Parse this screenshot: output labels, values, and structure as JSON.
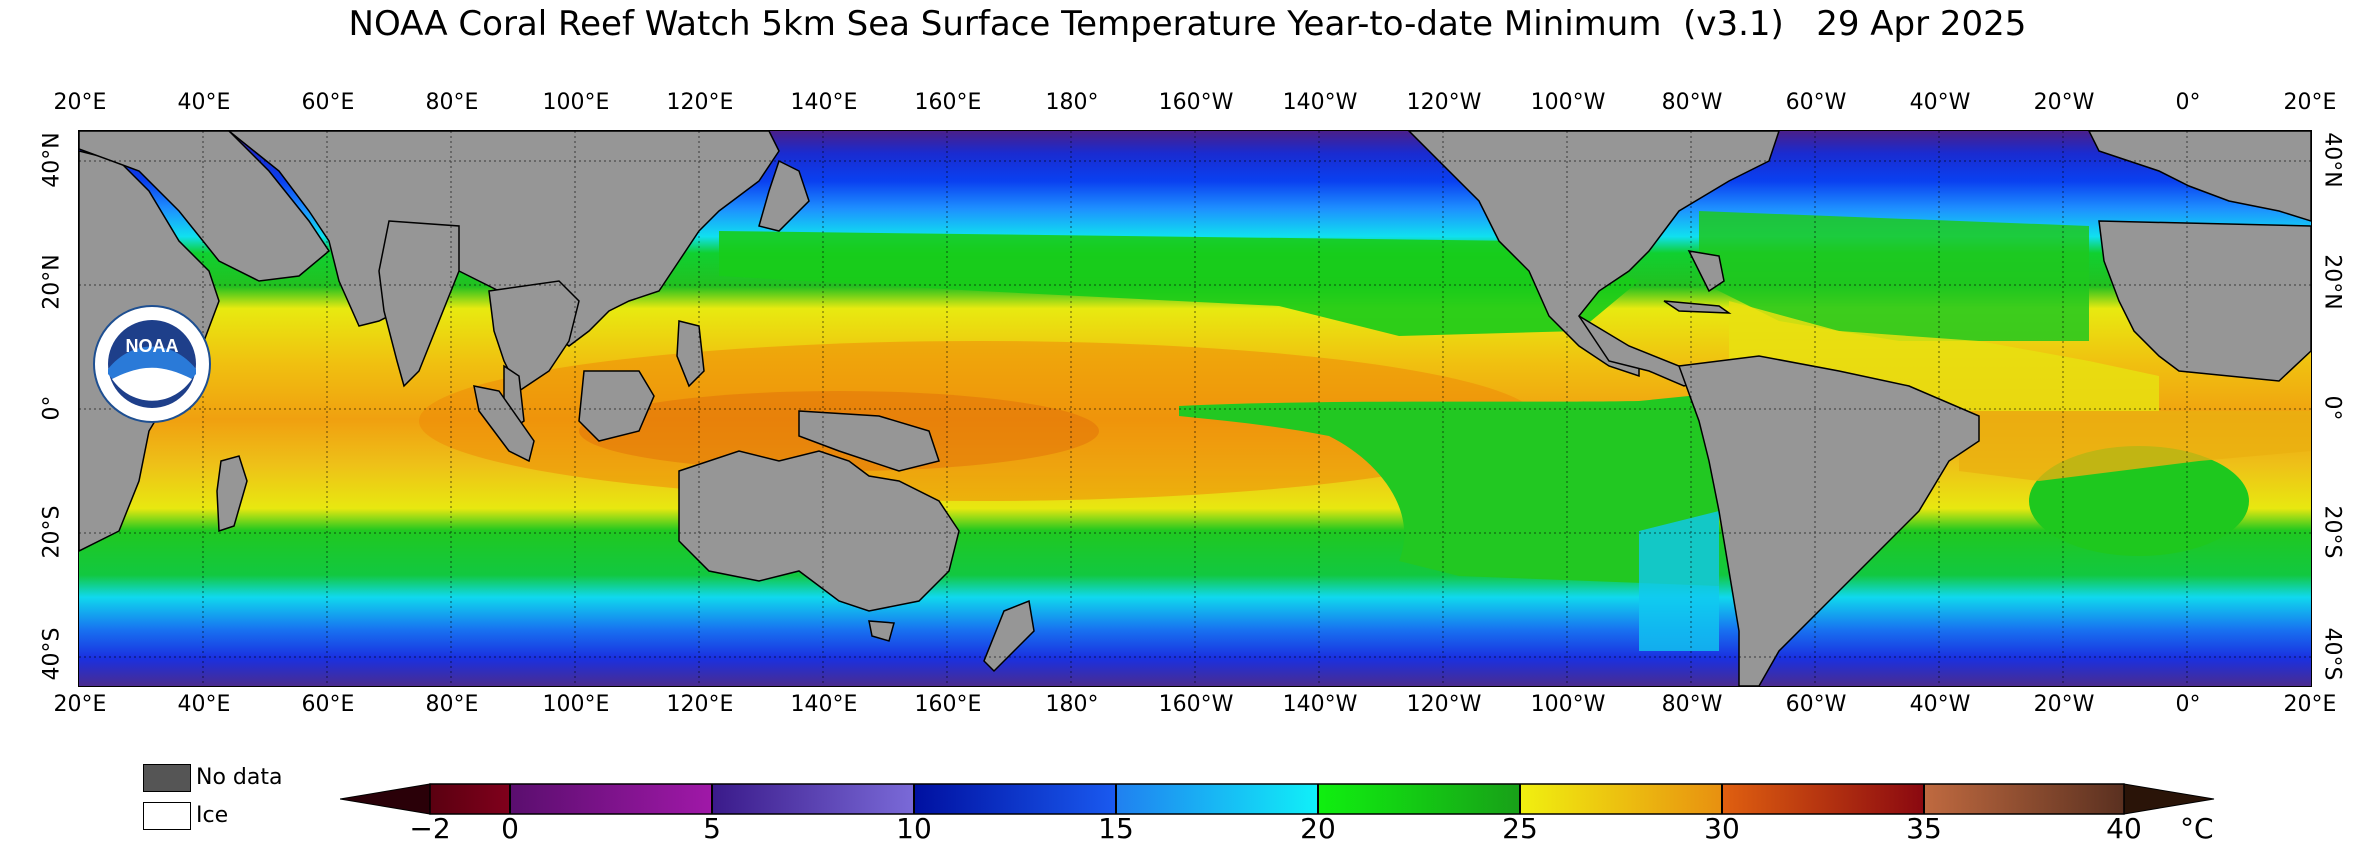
{
  "title": "NOAA Coral Reef Watch 5km Sea Surface Temperature Year-to-date Minimum  (v3.1)   29 Apr 2025",
  "longitude_labels": [
    "20°E",
    "40°E",
    "60°E",
    "80°E",
    "100°E",
    "120°E",
    "140°E",
    "160°E",
    "180°",
    "160°W",
    "140°W",
    "120°W",
    "100°W",
    "80°W",
    "60°W",
    "40°W",
    "20°W",
    "0°",
    "20°E"
  ],
  "latitude_labels": [
    "40°N",
    "20°N",
    "0°",
    "20°S",
    "40°S"
  ],
  "legend": {
    "no_data": "No data",
    "ice": "Ice",
    "no_data_color": "#555555",
    "ice_color": "#ffffff",
    "land_color": "#969696"
  },
  "colorbar": {
    "ticks": [
      "−2",
      "0",
      "5",
      "10",
      "15",
      "20",
      "25",
      "30",
      "35",
      "40"
    ],
    "unit": "°C"
  },
  "colors": {
    "land": "#969696",
    "coast": "#000000"
  }
}
